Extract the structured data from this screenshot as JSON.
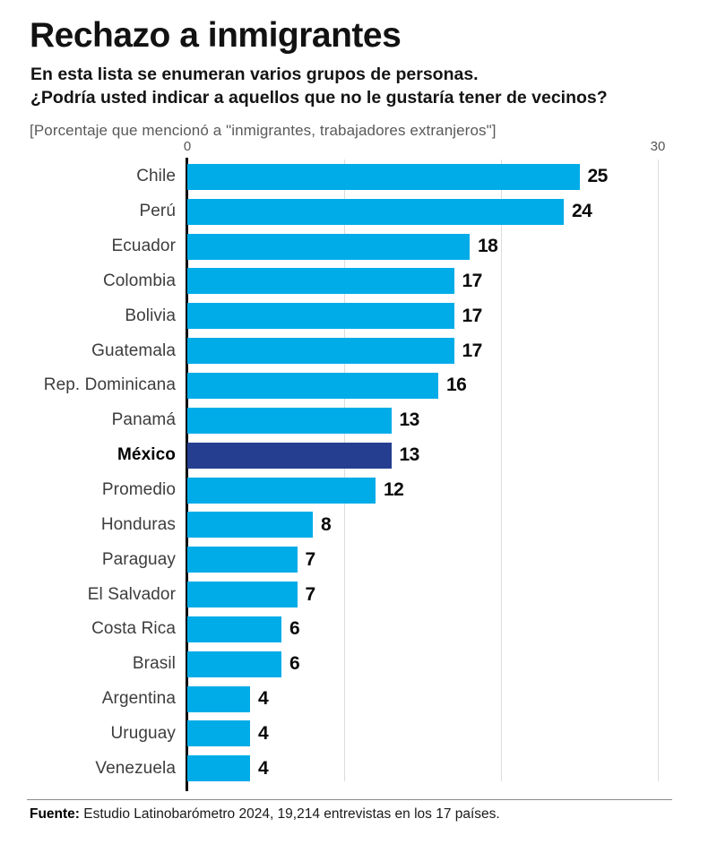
{
  "header": {
    "title": "Rechazo a inmigrantes",
    "subtitle_line1": "En esta lista se enumeran varios grupos de personas.",
    "subtitle_line2": "¿Podría usted indicar a aquellos que no le gustaría tener de vecinos?",
    "note": "[Porcentaje que mencionó a \"inmigrantes, trabajadores extranjeros\"]"
  },
  "chart_data": {
    "type": "bar",
    "orientation": "horizontal",
    "categories": [
      "Chile",
      "Perú",
      "Ecuador",
      "Colombia",
      "Bolivia",
      "Guatemala",
      "Rep. Dominicana",
      "Panamá",
      "México",
      "Promedio",
      "Honduras",
      "Paraguay",
      "El Salvador",
      "Costa Rica",
      "Brasil",
      "Argentina",
      "Uruguay",
      "Venezuela"
    ],
    "values": [
      25,
      24,
      18,
      17,
      17,
      17,
      16,
      13,
      13,
      12,
      8,
      7,
      7,
      6,
      6,
      4,
      4,
      4
    ],
    "highlight_category": "México",
    "xlim": [
      0,
      30
    ],
    "x_tick_labels": [
      "0",
      "30"
    ],
    "x_tick_values": [
      0,
      30
    ],
    "gridlines_at": [
      10,
      20,
      30
    ],
    "grid": true,
    "legend": false,
    "colors": {
      "bar": "#00ACE8",
      "highlight_bar": "#253E90",
      "axis_line": "#000000",
      "gridline": "#dcdcdc"
    }
  },
  "footer": {
    "source_label": "Fuente:",
    "source_text": " Estudio Latinobarómetro 2024, 19,214 entrevistas en los 17 países."
  }
}
